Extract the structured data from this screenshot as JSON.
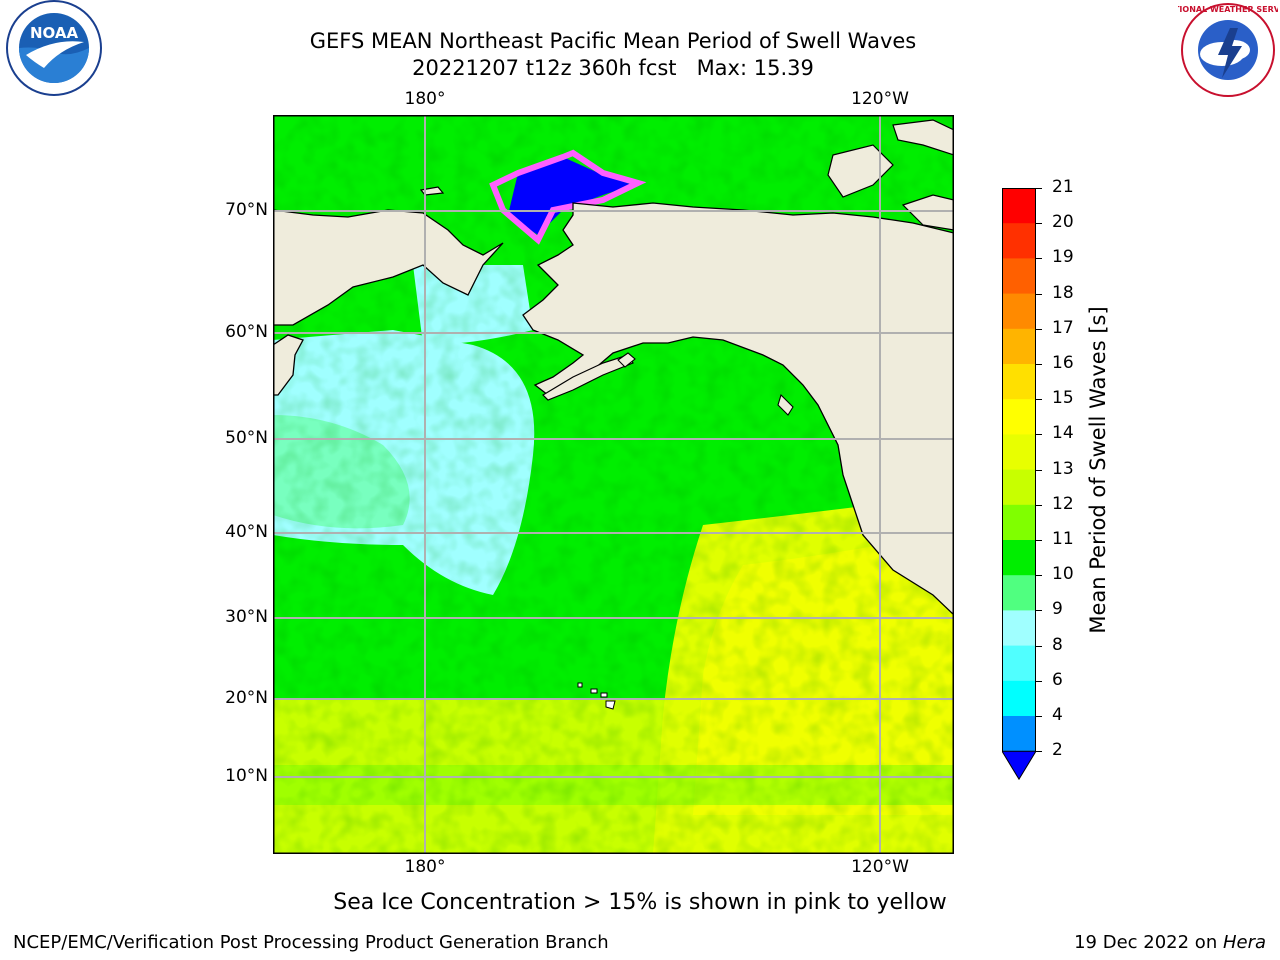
{
  "title": {
    "line1": "GEFS MEAN Northeast Pacific Mean Period of Swell Waves",
    "line2": "20221207 t12z 360h fcst   Max: 15.39"
  },
  "map": {
    "lon_labels": [
      "180°",
      "120°W"
    ],
    "lat_labels": [
      "70°N",
      "60°N",
      "50°N",
      "40°N",
      "30°N",
      "20°N",
      "10°N"
    ]
  },
  "colorbar": {
    "label": "Mean Period of Swell Waves [s]",
    "ticks": [
      "21",
      "20",
      "19",
      "18",
      "17",
      "16",
      "15",
      "14",
      "13",
      "12",
      "11",
      "10",
      "9",
      "8",
      "6",
      "4",
      "2"
    ],
    "colors": [
      "#ff0000",
      "#ff3000",
      "#ff6000",
      "#ff8a00",
      "#ffb400",
      "#ffe000",
      "#ffff00",
      "#e8ff00",
      "#c8ff00",
      "#80ff00",
      "#00ee00",
      "#50ff80",
      "#a0ffff",
      "#50ffff",
      "#00ffff",
      "#0090ff",
      "#0000ff"
    ]
  },
  "note": "Sea Ice Concentration > 15% is shown in pink to yellow",
  "footer": {
    "left": "NCEP/EMC/Verification Post Processing Product Generation Branch",
    "right_text": "19 Dec 2022 on ",
    "right_host": "Hera"
  },
  "logos": {
    "noaa": "NOAA",
    "noaa_ring": "NATIONAL OCEANIC AND ATMOSPHERIC ADMINISTRATION · U.S. DEPARTMENT OF COMMERCE",
    "nws": "NATIONAL WEATHER SERVICE"
  }
}
